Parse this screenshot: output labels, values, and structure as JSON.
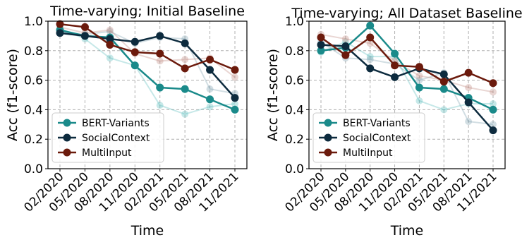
{
  "chart_data": [
    {
      "type": "line",
      "title": "Time-varying; Initial Baseline",
      "xlabel": "Time",
      "ylabel": "Acc (f1-score)",
      "categories": [
        "02/2020",
        "05/2020",
        "08/2020",
        "11/2020",
        "02/2021",
        "05/2021",
        "08/2021",
        "11/2021"
      ],
      "ylim": [
        0,
        1.0
      ],
      "yticks": [
        "0.0",
        "0.2",
        "0.4",
        "0.6",
        "0.8",
        "1.0"
      ],
      "grid": true,
      "legend_position": "lower-left",
      "series": [
        {
          "name": "BERT-Variants",
          "color": "#1a8a8a",
          "values": [
            0.94,
            0.9,
            0.89,
            0.7,
            0.55,
            0.54,
            0.47,
            0.4
          ]
        },
        {
          "name": "SocialContext",
          "color": "#0d2b3e",
          "values": [
            0.92,
            0.9,
            0.88,
            0.86,
            0.9,
            0.85,
            0.67,
            0.48
          ]
        },
        {
          "name": "MultiInput",
          "color": "#6b1a0c",
          "values": [
            0.98,
            0.96,
            0.84,
            0.79,
            0.78,
            0.68,
            0.74,
            0.67
          ]
        }
      ],
      "faded_lines": [
        {
          "color": "#5cbcbc",
          "values": [
            0.95,
            0.88,
            0.75,
            0.7,
            0.43,
            0.37,
            0.42,
            0.44
          ]
        },
        {
          "color": "#7fa0b0",
          "values": [
            0.93,
            0.91,
            0.93,
            0.85,
            0.89,
            0.88,
            0.54,
            0.51
          ]
        },
        {
          "color": "#c08a80",
          "values": [
            0.96,
            0.92,
            0.94,
            0.78,
            0.73,
            0.74,
            0.75,
            0.62
          ]
        }
      ]
    },
    {
      "type": "line",
      "title": "Time-varying; All Dataset Baseline",
      "xlabel": "Time",
      "ylabel": "Acc (f1-score)",
      "categories": [
        "02/2020",
        "05/2020",
        "08/2020",
        "11/2020",
        "02/2021",
        "05/2021",
        "08/2021",
        "11/2021"
      ],
      "ylim": [
        0,
        1.0
      ],
      "yticks": [
        "0.0",
        "0.2",
        "0.4",
        "0.6",
        "0.8",
        "1.0"
      ],
      "grid": true,
      "legend_position": "lower-left",
      "series": [
        {
          "name": "BERT-Variants",
          "color": "#1a8a8a",
          "values": [
            0.8,
            0.82,
            0.97,
            0.78,
            0.55,
            0.54,
            0.48,
            0.4
          ]
        },
        {
          "name": "SocialContext",
          "color": "#0d2b3e",
          "values": [
            0.84,
            0.83,
            0.68,
            0.62,
            0.68,
            0.64,
            0.45,
            0.26
          ]
        },
        {
          "name": "MultiInput",
          "color": "#6b1a0c",
          "values": [
            0.89,
            0.77,
            0.89,
            0.7,
            0.69,
            0.59,
            0.65,
            0.58
          ]
        }
      ],
      "faded_lines": [
        {
          "color": "#5cbcbc",
          "values": [
            0.79,
            0.86,
            0.76,
            0.76,
            0.46,
            0.4,
            0.44,
            0.44
          ]
        },
        {
          "color": "#7fa0b0",
          "values": [
            0.86,
            0.75,
            0.74,
            0.71,
            0.6,
            0.65,
            0.32,
            0.3
          ]
        },
        {
          "color": "#c08a80",
          "values": [
            0.91,
            0.88,
            0.85,
            0.73,
            0.63,
            0.6,
            0.55,
            0.52
          ]
        }
      ]
    }
  ]
}
